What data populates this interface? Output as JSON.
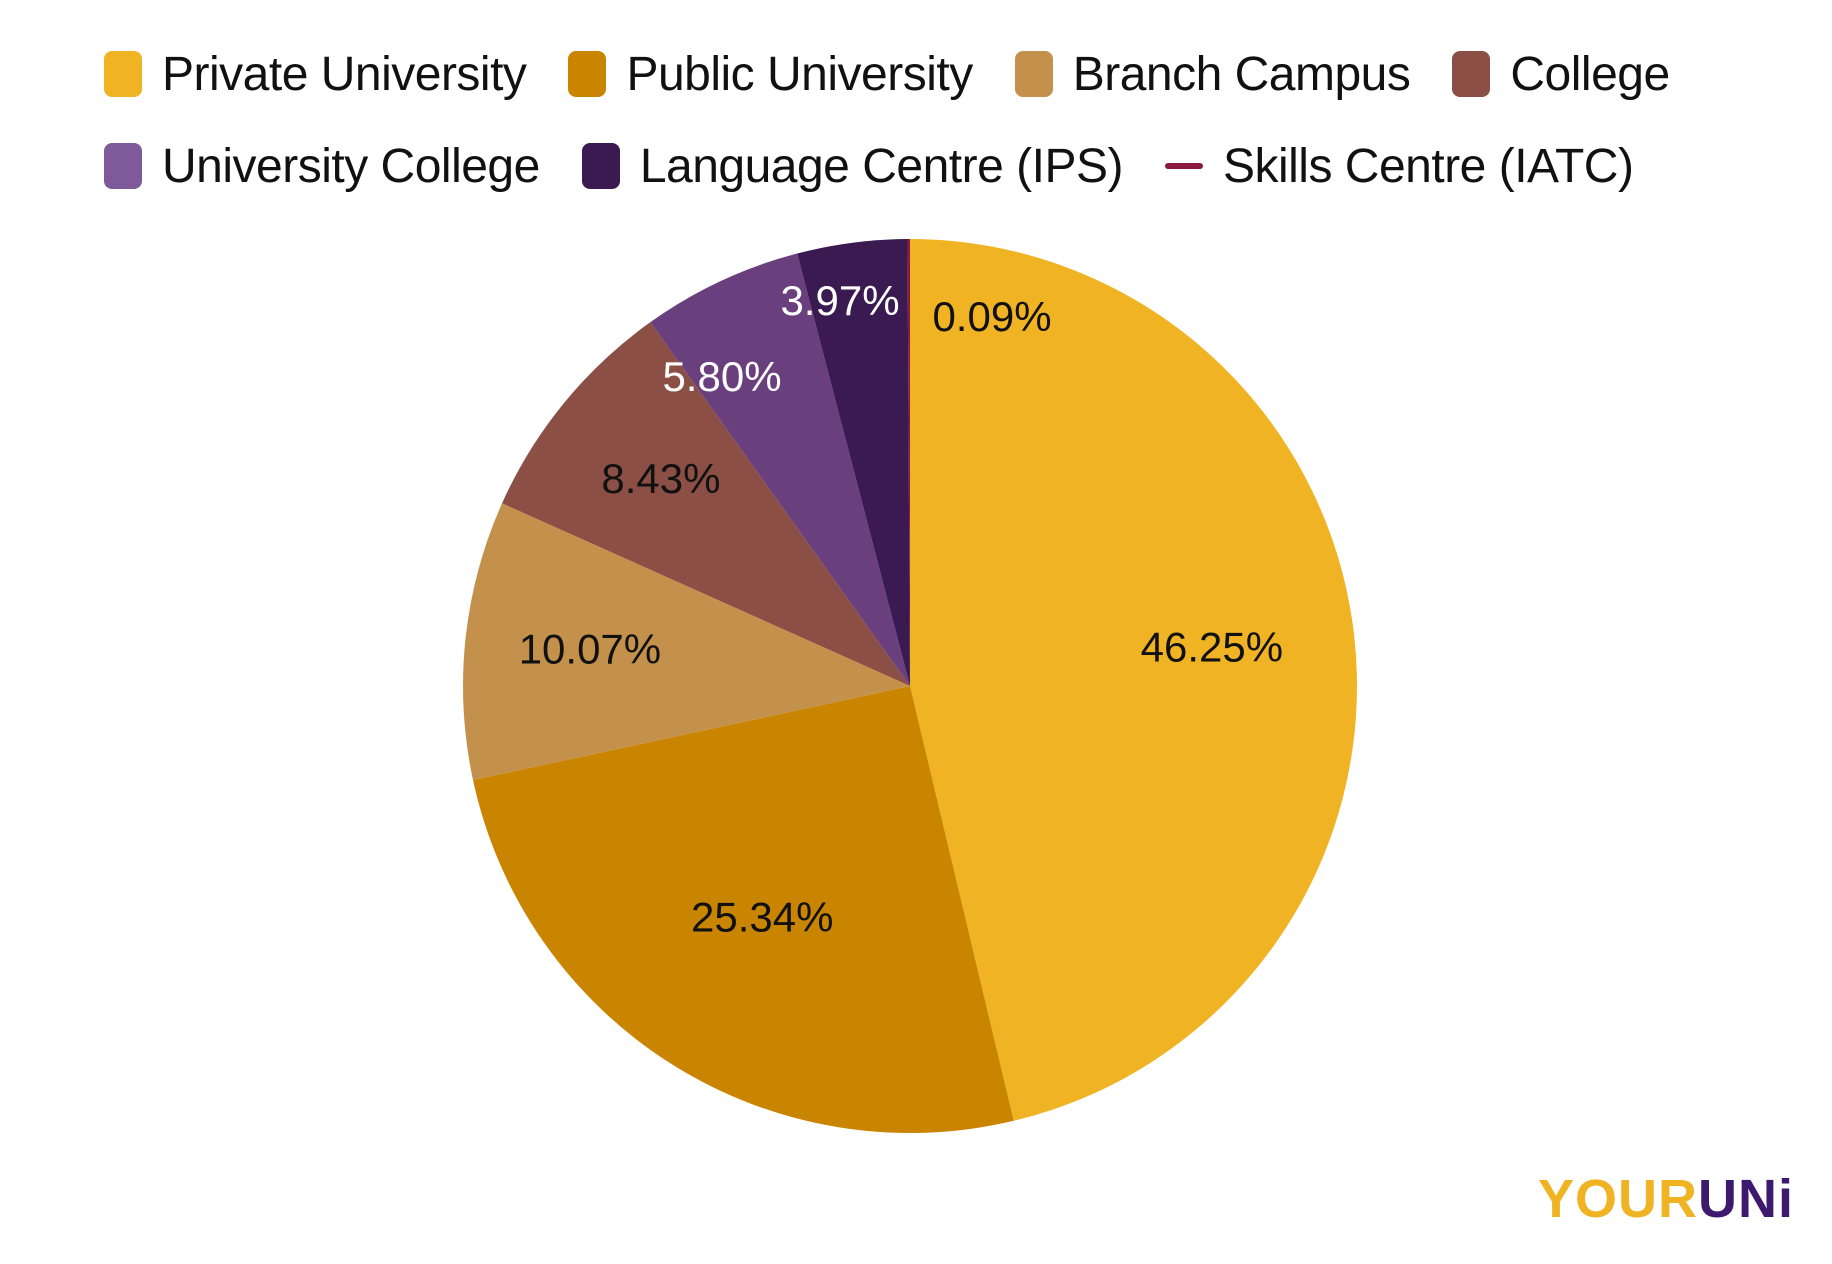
{
  "chart_data": {
    "type": "pie",
    "legend_placement": "top",
    "start_angle": "12 o'clock, clockwise",
    "slices": [
      {
        "name": "Private University",
        "value": 46.25,
        "label": "46.25%",
        "color": "#F0B323",
        "label_color": "#111111"
      },
      {
        "name": "Public University",
        "value": 25.34,
        "label": "25.34%",
        "color": "#C98500",
        "label_color": "#111111"
      },
      {
        "name": "Branch Campus",
        "value": 10.07,
        "label": "10.07%",
        "color": "#C4914C",
        "label_color": "#111111"
      },
      {
        "name": "College",
        "value": 8.43,
        "label": "8.43%",
        "color": "#8B4F45",
        "label_color": "#111111"
      },
      {
        "name": "University College",
        "value": 5.8,
        "label": "5.80%",
        "color": "#6A3F7E",
        "legend_color": "#7E5A9B",
        "label_color": "#FFFFFF"
      },
      {
        "name": "Language Centre (IPS)",
        "value": 3.97,
        "label": "3.97%",
        "color": "#3A1A50",
        "label_color": "#FFFFFF"
      },
      {
        "name": "Skills Centre (IATC)",
        "value": 0.09,
        "label": "0.09%",
        "color": "#8B1A40",
        "label_color": "#111111",
        "legend_marker": "line"
      }
    ]
  },
  "logo": {
    "part1": "YOUR",
    "part2": "UNi"
  }
}
